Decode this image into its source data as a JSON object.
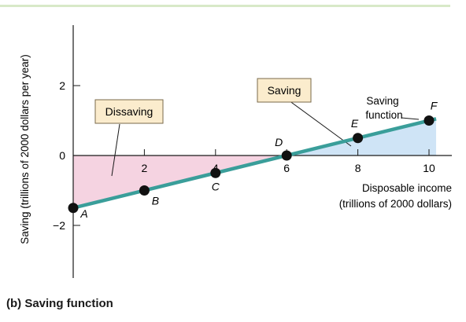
{
  "caption": "(b) Saving function",
  "colors": {
    "top_rule": "#d8e9c8",
    "line": "#3a9e9a",
    "dissaving_fill": "#f5d3e1",
    "saving_fill": "#cfe4f6",
    "label_box_fill": "#fbeccd",
    "label_box_stroke": "#7a6a4a",
    "point": "#111111",
    "axis": "#1a1a1a"
  },
  "chart_data": {
    "type": "line",
    "title": "",
    "xlabel": [
      "Disposable income",
      "(trillions of 2000 dollars)"
    ],
    "ylabel": "Saving (trillions of 2000 dollars per year)",
    "xlim": [
      0,
      10.5
    ],
    "ylim": [
      -3.5,
      3.5
    ],
    "xticks": [
      2,
      4,
      6,
      8,
      10
    ],
    "yticks": [
      2,
      0,
      -2
    ],
    "x_tick_labels": [
      "2",
      "4",
      "6",
      "8",
      "10"
    ],
    "y_tick_labels": [
      "2",
      "0",
      "−2"
    ],
    "series": [
      {
        "x": [
          0,
          10.2
        ],
        "y": [
          -1.5,
          1.05
        ]
      }
    ],
    "points": [
      {
        "label": "A",
        "x": 0,
        "y": -1.5
      },
      {
        "label": "B",
        "x": 2,
        "y": -1.0
      },
      {
        "label": "C",
        "x": 4,
        "y": -0.5
      },
      {
        "label": "D",
        "x": 6,
        "y": 0.0
      },
      {
        "label": "E",
        "x": 8,
        "y": 0.5
      },
      {
        "label": "F",
        "x": 10,
        "y": 1.0
      }
    ],
    "regions": [
      {
        "name": "dissaving",
        "x": [
          0,
          6
        ]
      },
      {
        "name": "saving",
        "x": [
          6,
          10.2
        ]
      }
    ],
    "annotations": {
      "dissaving_label": "Dissaving",
      "saving_label": "Saving",
      "saving_function_label": [
        "Saving",
        "function"
      ]
    },
    "grid": false
  }
}
